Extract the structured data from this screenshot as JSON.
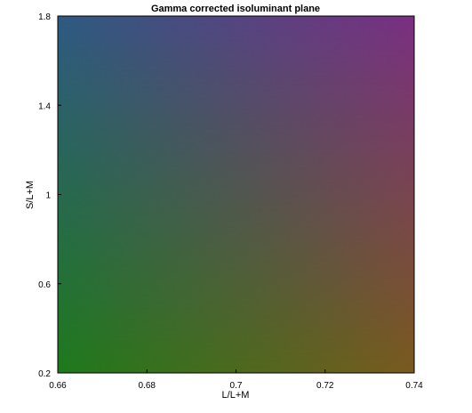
{
  "chart_data": {
    "type": "heatmap",
    "title": "Gamma corrected isoluminant plane",
    "xlabel": "L/L+M",
    "ylabel": "S/L+M",
    "xlim": [
      0.66,
      0.74
    ],
    "ylim": [
      0.2,
      1.8
    ],
    "x_ticks": [
      0.66,
      0.68,
      0.7,
      0.72,
      0.74
    ],
    "x_tick_labels": [
      "0.66",
      "0.68",
      "0.7",
      "0.72",
      "0.74"
    ],
    "y_ticks": [
      0.2,
      0.6,
      1.0,
      1.4,
      1.8
    ],
    "y_tick_labels": [
      "0.2",
      "0.6",
      "1",
      "1.4",
      "1.8"
    ],
    "grid": false,
    "corner_colors": {
      "bottom_left": "#1e7a1c",
      "bottom_right": "#7a5a1e",
      "top_left": "#2e5a82",
      "top_right": "#7a2f82"
    }
  }
}
